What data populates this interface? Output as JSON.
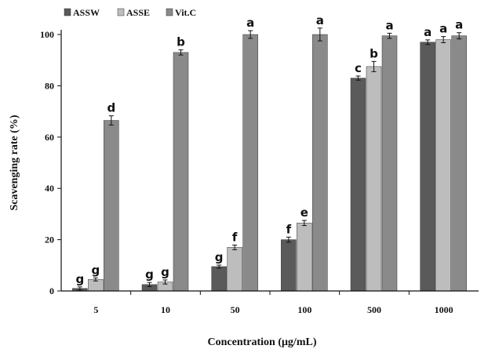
{
  "chart_data": {
    "type": "bar",
    "xlabel": "Concentration (μg/mL)",
    "ylabel": "Scavenging rate (%)",
    "ylim": [
      0,
      100
    ],
    "yticks": [
      "0",
      "20",
      "40",
      "60",
      "80",
      "100"
    ],
    "grid": false,
    "legend_position": "top-left",
    "categories": [
      "5",
      "10",
      "50",
      "100",
      "500",
      "1000"
    ],
    "series": [
      {
        "name": "ASSW",
        "color": "#5a5a5a",
        "values": [
          1,
          2.5,
          9.5,
          20,
          83,
          97
        ],
        "errors": [
          0.6,
          0.8,
          0.6,
          1.0,
          0.8,
          0.9
        ],
        "labels": [
          "g",
          "g",
          "g",
          "f",
          "c",
          "a"
        ]
      },
      {
        "name": "ASSE",
        "color": "#bdbdbd",
        "values": [
          4.5,
          3.5,
          17,
          26.5,
          87.5,
          98
        ],
        "errors": [
          0.6,
          0.8,
          0.9,
          1.0,
          2.0,
          1.2
        ],
        "labels": [
          "g",
          "g",
          "f",
          "e",
          "b",
          "a"
        ]
      },
      {
        "name": "Vit.C",
        "color": "#8a8a8a",
        "values": [
          66.5,
          93,
          100,
          100,
          99.5,
          99.5
        ],
        "errors": [
          1.8,
          1.0,
          1.5,
          2.5,
          1.0,
          1.2
        ],
        "labels": [
          "d",
          "b",
          "a",
          "a",
          "a",
          "a"
        ]
      }
    ]
  }
}
